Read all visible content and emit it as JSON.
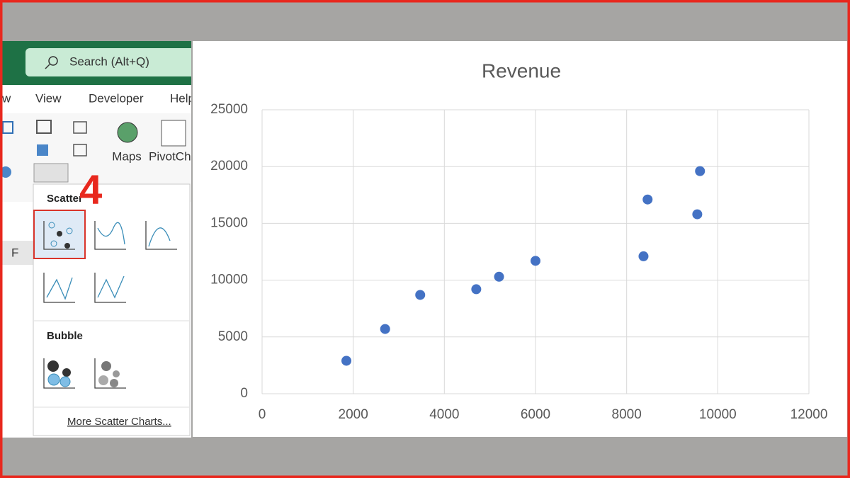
{
  "ui": {
    "search": "Search (Alt+Q)",
    "tabs": [
      "w",
      "View",
      "Developer",
      "Help"
    ],
    "maps": "Maps",
    "pivot_chart": "PivotChart",
    "column": "F",
    "step": "4",
    "scatter_heading": "Scatter",
    "bubble_heading": "Bubble",
    "more_link": "More Scatter Charts..."
  },
  "chart_data": {
    "type": "scatter",
    "title": "Revenue",
    "x": [
      1850,
      2700,
      3470,
      4700,
      5200,
      6000,
      8370,
      8460,
      9550,
      9610
    ],
    "values": [
      2900,
      5700,
      8700,
      9200,
      10300,
      11700,
      12100,
      17100,
      15800,
      19600
    ],
    "color": "#4472c4",
    "xlim": [
      0,
      12000
    ],
    "xticks": [
      0,
      2000,
      4000,
      6000,
      8000,
      10000,
      12000
    ],
    "ylim": [
      0,
      25000
    ],
    "yticks": [
      0,
      5000,
      10000,
      15000,
      20000,
      25000
    ],
    "grid": true
  }
}
